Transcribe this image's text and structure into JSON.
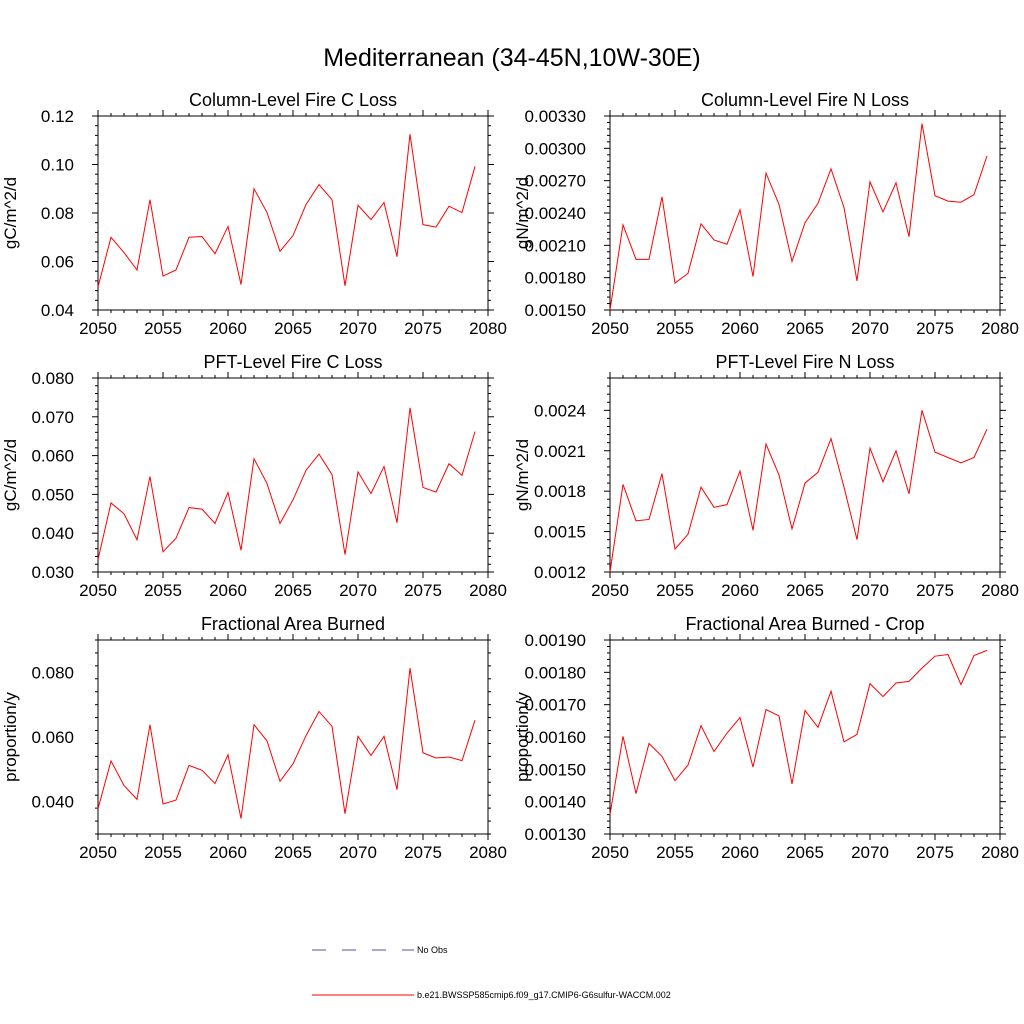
{
  "title": "Mediterranean (34-45N,10W-30E)",
  "legend": {
    "obs_label": "No Obs",
    "model_label": "b.e21.BWSSP585cmip6.f09_g17.CMIP6-G6sulfur-WACCM.002",
    "model_color": "#ff0000",
    "obs_color": "#5050a0"
  },
  "chart_data": [
    {
      "type": "line",
      "title": "Column-Level Fire C Loss",
      "ylabel": "gC/m^2/d",
      "xlim": [
        2050,
        2080
      ],
      "ylim": [
        0.04,
        0.12
      ],
      "xticks": [
        "2050",
        "2055",
        "2060",
        "2065",
        "2070",
        "2075",
        "2080"
      ],
      "yticks": [
        "0.04",
        "0.06",
        "0.08",
        "0.10",
        "0.12"
      ],
      "x": [
        2050,
        2051,
        2052,
        2053,
        2054,
        2055,
        2056,
        2057,
        2058,
        2059,
        2060,
        2061,
        2062,
        2063,
        2064,
        2065,
        2066,
        2067,
        2068,
        2069,
        2070,
        2071,
        2072,
        2073,
        2074,
        2075,
        2076,
        2077,
        2078,
        2079
      ],
      "series": [
        {
          "values": [
            0.0495,
            0.07,
            0.0637,
            0.0565,
            0.0855,
            0.054,
            0.0565,
            0.07,
            0.0703,
            0.0632,
            0.0745,
            0.0505,
            0.09,
            0.0802,
            0.0642,
            0.0707,
            0.0835,
            0.0917,
            0.0855,
            0.05,
            0.0832,
            0.0773,
            0.0843,
            0.062,
            0.1125,
            0.0752,
            0.0742,
            0.0828,
            0.0802,
            0.0992
          ]
        }
      ]
    },
    {
      "type": "line",
      "title": "Column-Level Fire N Loss",
      "ylabel": "gN/m^2/d",
      "xlim": [
        2050,
        2080
      ],
      "ylim": [
        0.0015,
        0.0033
      ],
      "xticks": [
        "2050",
        "2055",
        "2060",
        "2065",
        "2070",
        "2075",
        "2080"
      ],
      "yticks": [
        "0.00150",
        "0.00180",
        "0.00210",
        "0.00240",
        "0.00270",
        "0.00300",
        "0.00330"
      ],
      "x": [
        2050,
        2051,
        2052,
        2053,
        2054,
        2055,
        2056,
        2057,
        2058,
        2059,
        2060,
        2061,
        2062,
        2063,
        2064,
        2065,
        2066,
        2067,
        2068,
        2069,
        2070,
        2071,
        2072,
        2073,
        2074,
        2075,
        2076,
        2077,
        2078,
        2079
      ],
      "series": [
        {
          "values": [
            0.0015,
            0.00229,
            0.00197,
            0.00197,
            0.00255,
            0.00175,
            0.00184,
            0.0023,
            0.00215,
            0.00211,
            0.00243,
            0.00181,
            0.00277,
            0.00248,
            0.00195,
            0.00231,
            0.00249,
            0.00281,
            0.00245,
            0.00177,
            0.00269,
            0.00241,
            0.00268,
            0.00218,
            0.00323,
            0.00256,
            0.00251,
            0.0025,
            0.00257,
            0.00293
          ]
        }
      ]
    },
    {
      "type": "line",
      "title": "PFT-Level Fire C Loss",
      "ylabel": "gC/m^2/d",
      "xlim": [
        2050,
        2080
      ],
      "ylim": [
        0.03,
        0.08
      ],
      "xticks": [
        "2050",
        "2055",
        "2060",
        "2065",
        "2070",
        "2075",
        "2080"
      ],
      "yticks": [
        "0.030",
        "0.040",
        "0.050",
        "0.060",
        "0.070",
        "0.080"
      ],
      "x": [
        2050,
        2051,
        2052,
        2053,
        2054,
        2055,
        2056,
        2057,
        2058,
        2059,
        2060,
        2061,
        2062,
        2063,
        2064,
        2065,
        2066,
        2067,
        2068,
        2069,
        2070,
        2071,
        2072,
        2073,
        2074,
        2075,
        2076,
        2077,
        2078,
        2079
      ],
      "series": [
        {
          "values": [
            0.0332,
            0.0478,
            0.045,
            0.0383,
            0.0546,
            0.0352,
            0.0387,
            0.0466,
            0.0462,
            0.0425,
            0.0505,
            0.0356,
            0.0592,
            0.0528,
            0.0425,
            0.0486,
            0.0562,
            0.0604,
            0.0551,
            0.0345,
            0.0558,
            0.0502,
            0.0572,
            0.0427,
            0.0723,
            0.0518,
            0.0506,
            0.0579,
            0.0549,
            0.0662
          ]
        }
      ]
    },
    {
      "type": "line",
      "title": "PFT-Level Fire N Loss",
      "ylabel": "gN/m^2/d",
      "xlim": [
        2050,
        2080
      ],
      "ylim": [
        0.0012,
        0.00264
      ],
      "xticks": [
        "2050",
        "2055",
        "2060",
        "2065",
        "2070",
        "2075",
        "2080"
      ],
      "yticks": [
        "0.0012",
        "0.0015",
        "0.0018",
        "0.0021",
        "0.0024"
      ],
      "x": [
        2050,
        2051,
        2052,
        2053,
        2054,
        2055,
        2056,
        2057,
        2058,
        2059,
        2060,
        2061,
        2062,
        2063,
        2064,
        2065,
        2066,
        2067,
        2068,
        2069,
        2070,
        2071,
        2072,
        2073,
        2074,
        2075,
        2076,
        2077,
        2078,
        2079
      ],
      "series": [
        {
          "values": [
            0.0012,
            0.00185,
            0.00158,
            0.00159,
            0.00193,
            0.00137,
            0.00148,
            0.00183,
            0.00168,
            0.0017,
            0.00195,
            0.00151,
            0.00215,
            0.00192,
            0.00152,
            0.00186,
            0.00194,
            0.00219,
            0.00183,
            0.00144,
            0.00212,
            0.00187,
            0.0021,
            0.00178,
            0.0024,
            0.00209,
            0.00205,
            0.00201,
            0.00205,
            0.00226
          ]
        }
      ]
    },
    {
      "type": "line",
      "title": "Fractional Area Burned",
      "ylabel": "proportion/y",
      "xlim": [
        2050,
        2080
      ],
      "ylim": [
        0.03,
        0.09
      ],
      "xticks": [
        "2050",
        "2055",
        "2060",
        "2065",
        "2070",
        "2075",
        "2080"
      ],
      "yticks": [
        "0.040",
        "0.060",
        "0.080"
      ],
      "x": [
        2050,
        2051,
        2052,
        2053,
        2054,
        2055,
        2056,
        2057,
        2058,
        2059,
        2060,
        2061,
        2062,
        2063,
        2064,
        2065,
        2066,
        2067,
        2068,
        2069,
        2070,
        2071,
        2072,
        2073,
        2074,
        2075,
        2076,
        2077,
        2078,
        2079
      ],
      "series": [
        {
          "values": [
            0.0378,
            0.0526,
            0.045,
            0.0407,
            0.0638,
            0.0393,
            0.0405,
            0.0512,
            0.0497,
            0.0456,
            0.0545,
            0.0348,
            0.0638,
            0.0588,
            0.0463,
            0.0517,
            0.0604,
            0.0679,
            0.0633,
            0.0363,
            0.0602,
            0.0543,
            0.0602,
            0.0437,
            0.0813,
            0.0551,
            0.0535,
            0.0538,
            0.0527,
            0.0652
          ]
        }
      ]
    },
    {
      "type": "line",
      "title": "Fractional Area Burned - Crop",
      "ylabel": "proportion/y",
      "xlim": [
        2050,
        2080
      ],
      "ylim": [
        0.0013,
        0.0019
      ],
      "xticks": [
        "2050",
        "2055",
        "2060",
        "2065",
        "2070",
        "2075",
        "2080"
      ],
      "yticks": [
        "0.00130",
        "0.00140",
        "0.00150",
        "0.00160",
        "0.00170",
        "0.00180",
        "0.00190"
      ],
      "x": [
        2050,
        2051,
        2052,
        2053,
        2054,
        2055,
        2056,
        2057,
        2058,
        2059,
        2060,
        2061,
        2062,
        2063,
        2064,
        2065,
        2066,
        2067,
        2068,
        2069,
        2070,
        2071,
        2072,
        2073,
        2074,
        2075,
        2076,
        2077,
        2078,
        2079
      ],
      "series": [
        {
          "values": [
            0.00136,
            0.001602,
            0.001425,
            0.00158,
            0.00154,
            0.001465,
            0.001513,
            0.001635,
            0.001555,
            0.001612,
            0.00166,
            0.001507,
            0.001685,
            0.001665,
            0.001455,
            0.001682,
            0.00163,
            0.001742,
            0.001585,
            0.001608,
            0.001765,
            0.001725,
            0.001767,
            0.001772,
            0.001813,
            0.00185,
            0.001855,
            0.001762,
            0.001852,
            0.001868
          ]
        }
      ]
    }
  ]
}
